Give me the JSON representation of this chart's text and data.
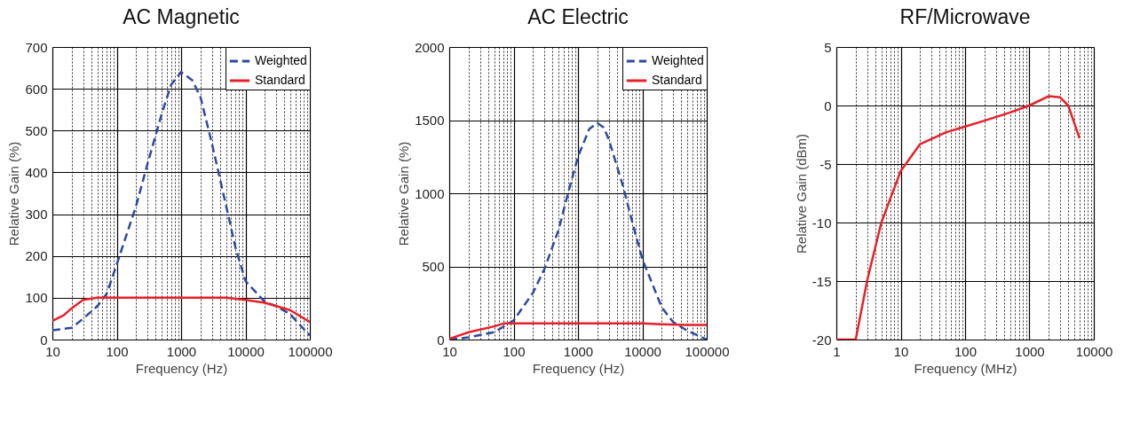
{
  "chart_data": [
    {
      "type": "line",
      "title": "AC Magnetic",
      "xlabel": "Frequency (Hz)",
      "ylabel": "Relative Gain (%)",
      "log": "x",
      "grid": true,
      "legend": "top right",
      "xlim": [
        10,
        100000
      ],
      "ylim": [
        0,
        700
      ],
      "yticks": [
        0,
        100,
        200,
        300,
        400,
        500,
        600,
        700
      ],
      "xticks": [
        10,
        {
          "value": 20,
          "label": null
        },
        {
          "value": 30,
          "label": null
        },
        {
          "value": 40,
          "label": null
        },
        {
          "value": 50,
          "label": null
        },
        {
          "value": 60,
          "label": null
        },
        {
          "value": 70,
          "label": null
        },
        {
          "value": 80,
          "label": null
        },
        {
          "value": 90,
          "label": null
        },
        100,
        {
          "value": 200,
          "label": null
        },
        {
          "value": 300,
          "label": null
        },
        {
          "value": 400,
          "label": null
        },
        {
          "value": 500,
          "label": null
        },
        {
          "value": 600,
          "label": null
        },
        {
          "value": 700,
          "label": null
        },
        {
          "value": 800,
          "label": null
        },
        {
          "value": 900,
          "label": null
        },
        1000,
        {
          "value": 2000,
          "label": null
        },
        {
          "value": 3000,
          "label": null
        },
        {
          "value": 4000,
          "label": null
        },
        {
          "value": 5000,
          "label": null
        },
        {
          "value": 6000,
          "label": null
        },
        {
          "value": 7000,
          "label": null
        },
        {
          "value": 8000,
          "label": null
        },
        {
          "value": 9000,
          "label": null
        },
        10000,
        {
          "value": 20000,
          "label": null
        },
        {
          "value": 30000,
          "label": null
        },
        {
          "value": 40000,
          "label": null
        },
        {
          "value": 50000,
          "label": null
        },
        {
          "value": 60000,
          "label": null
        },
        {
          "value": 70000,
          "label": null
        },
        {
          "value": 80000,
          "label": null
        },
        {
          "value": 90000,
          "label": null
        },
        100000
      ],
      "series": [
        {
          "name": "Weighted",
          "color": "#2e4a9e",
          "line_style": "dashed",
          "x": [
            10,
            20,
            30,
            50,
            70,
            100,
            200,
            300,
            500,
            700,
            1000,
            1500,
            2000,
            3000,
            5000,
            7000,
            10000,
            20000,
            30000,
            50000,
            70000,
            100000
          ],
          "values": [
            22,
            28,
            50,
            80,
            110,
            180,
            320,
            420,
            540,
            610,
            640,
            620,
            580,
            470,
            320,
            220,
            140,
            90,
            80,
            60,
            35,
            10
          ]
        },
        {
          "name": "Standard",
          "color": "#e8202a",
          "line_style": "solid",
          "x": [
            10,
            15,
            20,
            30,
            50,
            100,
            1000,
            5000,
            10000,
            20000,
            30000,
            50000,
            100000
          ],
          "values": [
            45,
            58,
            75,
            95,
            100,
            100,
            100,
            100,
            95,
            88,
            80,
            70,
            42
          ]
        }
      ]
    },
    {
      "type": "line",
      "title": "AC Electric",
      "xlabel": "Frequency (Hz)",
      "ylabel": "Relative Gain (%)",
      "log": "x",
      "grid": true,
      "legend": "top right",
      "xlim": [
        10,
        100000
      ],
      "ylim": [
        0,
        2000
      ],
      "yticks": [
        0,
        500,
        1000,
        1500,
        2000
      ],
      "xticks": [
        10,
        {
          "value": 20,
          "label": null
        },
        {
          "value": 30,
          "label": null
        },
        {
          "value": 40,
          "label": null
        },
        {
          "value": 50,
          "label": null
        },
        {
          "value": 60,
          "label": null
        },
        {
          "value": 70,
          "label": null
        },
        {
          "value": 80,
          "label": null
        },
        {
          "value": 90,
          "label": null
        },
        100,
        {
          "value": 200,
          "label": null
        },
        {
          "value": 300,
          "label": null
        },
        {
          "value": 400,
          "label": null
        },
        {
          "value": 500,
          "label": null
        },
        {
          "value": 600,
          "label": null
        },
        {
          "value": 700,
          "label": null
        },
        {
          "value": 800,
          "label": null
        },
        {
          "value": 900,
          "label": null
        },
        1000,
        {
          "value": 2000,
          "label": null
        },
        {
          "value": 3000,
          "label": null
        },
        {
          "value": 4000,
          "label": null
        },
        {
          "value": 5000,
          "label": null
        },
        {
          "value": 6000,
          "label": null
        },
        {
          "value": 7000,
          "label": null
        },
        {
          "value": 8000,
          "label": null
        },
        {
          "value": 9000,
          "label": null
        },
        10000,
        {
          "value": 20000,
          "label": null
        },
        {
          "value": 30000,
          "label": null
        },
        {
          "value": 40000,
          "label": null
        },
        {
          "value": 50000,
          "label": null
        },
        {
          "value": 60000,
          "label": null
        },
        {
          "value": 70000,
          "label": null
        },
        {
          "value": 80000,
          "label": null
        },
        {
          "value": 90000,
          "label": null
        },
        100000
      ],
      "series": [
        {
          "name": "Weighted",
          "color": "#2e4a9e",
          "line_style": "dashed",
          "x": [
            10,
            20,
            50,
            100,
            200,
            300,
            500,
            700,
            1000,
            1500,
            2000,
            2500,
            3000,
            5000,
            7000,
            10000,
            20000,
            30000,
            50000,
            100000
          ],
          "values": [
            0,
            15,
            50,
            130,
            320,
            480,
            750,
            1000,
            1250,
            1440,
            1480,
            1450,
            1370,
            1050,
            800,
            550,
            220,
            120,
            60,
            0
          ]
        },
        {
          "name": "Standard",
          "color": "#e8202a",
          "line_style": "solid",
          "x": [
            10,
            20,
            50,
            70,
            100,
            10000,
            20000,
            50000,
            100000
          ],
          "values": [
            5,
            50,
            90,
            110,
            110,
            110,
            105,
            100,
            100
          ]
        }
      ]
    },
    {
      "type": "line",
      "title": "RF/Microwave",
      "xlabel": "Frequency (MHz)",
      "ylabel": "Relative Gain (dBm)",
      "log": "x",
      "grid": true,
      "xlim": [
        1,
        10000
      ],
      "ylim": [
        -20,
        5
      ],
      "yticks": [
        -20,
        -15,
        -10,
        -5,
        0,
        5
      ],
      "xticks": [
        1,
        {
          "value": 2,
          "label": null
        },
        {
          "value": 3,
          "label": null
        },
        {
          "value": 4,
          "label": null
        },
        {
          "value": 5,
          "label": null
        },
        {
          "value": 6,
          "label": null
        },
        {
          "value": 7,
          "label": null
        },
        {
          "value": 8,
          "label": null
        },
        {
          "value": 9,
          "label": null
        },
        10,
        {
          "value": 20,
          "label": null
        },
        {
          "value": 30,
          "label": null
        },
        {
          "value": 40,
          "label": null
        },
        {
          "value": 50,
          "label": null
        },
        {
          "value": 60,
          "label": null
        },
        {
          "value": 70,
          "label": null
        },
        {
          "value": 80,
          "label": null
        },
        {
          "value": 90,
          "label": null
        },
        100,
        {
          "value": 200,
          "label": null
        },
        {
          "value": 300,
          "label": null
        },
        {
          "value": 400,
          "label": null
        },
        {
          "value": 500,
          "label": null
        },
        {
          "value": 600,
          "label": null
        },
        {
          "value": 700,
          "label": null
        },
        {
          "value": 800,
          "label": null
        },
        {
          "value": 900,
          "label": null
        },
        1000,
        {
          "value": 2000,
          "label": null
        },
        {
          "value": 3000,
          "label": null
        },
        {
          "value": 4000,
          "label": null
        },
        {
          "value": 5000,
          "label": null
        },
        {
          "value": 6000,
          "label": null
        },
        {
          "value": 7000,
          "label": null
        },
        {
          "value": 8000,
          "label": null
        },
        {
          "value": 9000,
          "label": null
        },
        10000
      ],
      "series": [
        {
          "color": "#e8202a",
          "line_style": "solid",
          "x": [
            1,
            2,
            3,
            5,
            10,
            20,
            50,
            100,
            200,
            500,
            1000,
            2000,
            3000,
            4000,
            6000
          ],
          "values": [
            -20,
            -20,
            -15,
            -10,
            -5.6,
            -3.3,
            -2.3,
            -1.8,
            -1.3,
            -0.6,
            0,
            0.8,
            0.7,
            0,
            -2.8
          ]
        }
      ]
    }
  ]
}
